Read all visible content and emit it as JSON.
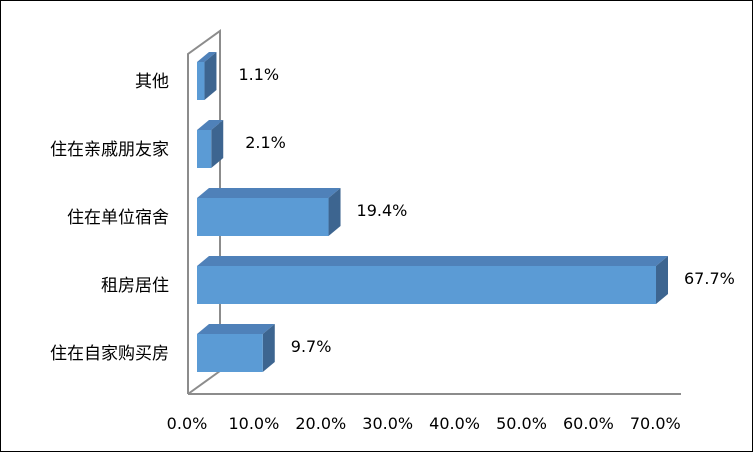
{
  "chart_data": {
    "type": "bar",
    "orientation": "horizontal",
    "style": "3d",
    "categories": [
      "其他",
      "住在亲戚朋友家",
      "住在单位宿舍",
      "租房居住",
      "住在自家购买房"
    ],
    "values": [
      1.1,
      2.1,
      19.4,
      67.7,
      9.7
    ],
    "data_labels": [
      "1.1%",
      "2.1%",
      "19.4%",
      "67.7%",
      "9.7%"
    ],
    "xlim": [
      0,
      70
    ],
    "x_ticks": [
      "0.0%",
      "10.0%",
      "20.0%",
      "30.0%",
      "40.0%",
      "50.0%",
      "60.0%",
      "70.0%"
    ],
    "grid": false,
    "legend": "none",
    "colors": {
      "front": "#5b9bd5",
      "top": "#4f81b9",
      "side": "#3d6590",
      "wall": "#8c8c8c"
    }
  }
}
